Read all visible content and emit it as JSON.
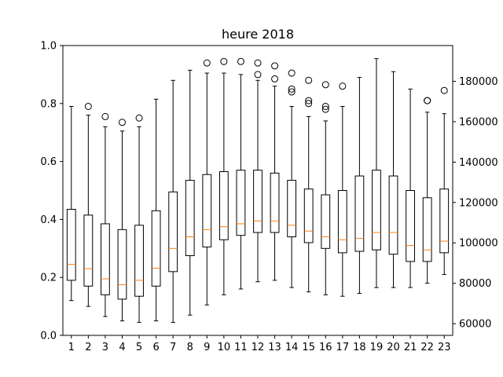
{
  "chart_data": {
    "type": "box",
    "title": "heure 2018",
    "xlabel": "",
    "ylabel": "",
    "categories": [
      "1",
      "2",
      "3",
      "4",
      "5",
      "6",
      "7",
      "8",
      "9",
      "10",
      "11",
      "12",
      "13",
      "14",
      "15",
      "16",
      "17",
      "18",
      "19",
      "20",
      "21",
      "22",
      "23"
    ],
    "ylim": [
      0.0,
      1.0
    ],
    "yticks": [
      "0.0",
      "0.2",
      "0.4",
      "0.6",
      "0.8",
      "1.0"
    ],
    "y2_ticks": [
      "60000",
      "80000",
      "100000",
      "120000",
      "140000",
      "160000",
      "180000"
    ],
    "y2_range": [
      54200,
      197700
    ],
    "median_color": "#ff7f0e",
    "box_color": "#000000",
    "boxes": [
      {
        "whislo": 0.12,
        "q1": 0.19,
        "med": 0.245,
        "q3": 0.435,
        "whishi": 0.79,
        "fliers": []
      },
      {
        "whislo": 0.1,
        "q1": 0.17,
        "med": 0.23,
        "q3": 0.415,
        "whishi": 0.76,
        "fliers": [
          0.79
        ]
      },
      {
        "whislo": 0.065,
        "q1": 0.14,
        "med": 0.195,
        "q3": 0.385,
        "whishi": 0.72,
        "fliers": [
          0.755
        ]
      },
      {
        "whislo": 0.05,
        "q1": 0.125,
        "med": 0.175,
        "q3": 0.365,
        "whishi": 0.705,
        "fliers": [
          0.735
        ]
      },
      {
        "whislo": 0.045,
        "q1": 0.135,
        "med": 0.19,
        "q3": 0.38,
        "whishi": 0.72,
        "fliers": [
          0.75
        ]
      },
      {
        "whislo": 0.05,
        "q1": 0.17,
        "med": 0.232,
        "q3": 0.43,
        "whishi": 0.815,
        "fliers": []
      },
      {
        "whislo": 0.045,
        "q1": 0.22,
        "med": 0.3,
        "q3": 0.495,
        "whishi": 0.88,
        "fliers": []
      },
      {
        "whislo": 0.07,
        "q1": 0.275,
        "med": 0.34,
        "q3": 0.535,
        "whishi": 0.915,
        "fliers": []
      },
      {
        "whislo": 0.105,
        "q1": 0.305,
        "med": 0.365,
        "q3": 0.555,
        "whishi": 0.905,
        "fliers": [
          0.94
        ]
      },
      {
        "whislo": 0.14,
        "q1": 0.33,
        "med": 0.375,
        "q3": 0.565,
        "whishi": 0.905,
        "fliers": [
          0.945
        ]
      },
      {
        "whislo": 0.16,
        "q1": 0.345,
        "med": 0.385,
        "q3": 0.57,
        "whishi": 0.9,
        "fliers": [
          0.945
        ]
      },
      {
        "whislo": 0.185,
        "q1": 0.355,
        "med": 0.395,
        "q3": 0.57,
        "whishi": 0.88,
        "fliers": [
          0.9,
          0.94
        ]
      },
      {
        "whislo": 0.19,
        "q1": 0.355,
        "med": 0.395,
        "q3": 0.56,
        "whishi": 0.86,
        "fliers": [
          0.885,
          0.93
        ]
      },
      {
        "whislo": 0.165,
        "q1": 0.34,
        "med": 0.38,
        "q3": 0.535,
        "whishi": 0.79,
        "fliers": [
          0.84,
          0.85,
          0.905
        ]
      },
      {
        "whislo": 0.15,
        "q1": 0.32,
        "med": 0.36,
        "q3": 0.505,
        "whishi": 0.755,
        "fliers": [
          0.8,
          0.81,
          0.88
        ]
      },
      {
        "whislo": 0.14,
        "q1": 0.3,
        "med": 0.34,
        "q3": 0.485,
        "whishi": 0.74,
        "fliers": [
          0.78,
          0.79,
          0.865
        ]
      },
      {
        "whislo": 0.135,
        "q1": 0.285,
        "med": 0.33,
        "q3": 0.5,
        "whishi": 0.79,
        "fliers": [
          0.86
        ]
      },
      {
        "whislo": 0.145,
        "q1": 0.29,
        "med": 0.335,
        "q3": 0.55,
        "whishi": 0.89,
        "fliers": []
      },
      {
        "whislo": 0.165,
        "q1": 0.295,
        "med": 0.355,
        "q3": 0.57,
        "whishi": 0.955,
        "fliers": []
      },
      {
        "whislo": 0.165,
        "q1": 0.28,
        "med": 0.355,
        "q3": 0.55,
        "whishi": 0.91,
        "fliers": []
      },
      {
        "whislo": 0.165,
        "q1": 0.255,
        "med": 0.31,
        "q3": 0.5,
        "whishi": 0.85,
        "fliers": []
      },
      {
        "whislo": 0.18,
        "q1": 0.255,
        "med": 0.295,
        "q3": 0.475,
        "whishi": 0.77,
        "fliers": [
          0.81,
          0.81
        ]
      },
      {
        "whislo": 0.21,
        "q1": 0.285,
        "med": 0.325,
        "q3": 0.505,
        "whishi": 0.765,
        "fliers": [
          0.845
        ]
      }
    ]
  }
}
